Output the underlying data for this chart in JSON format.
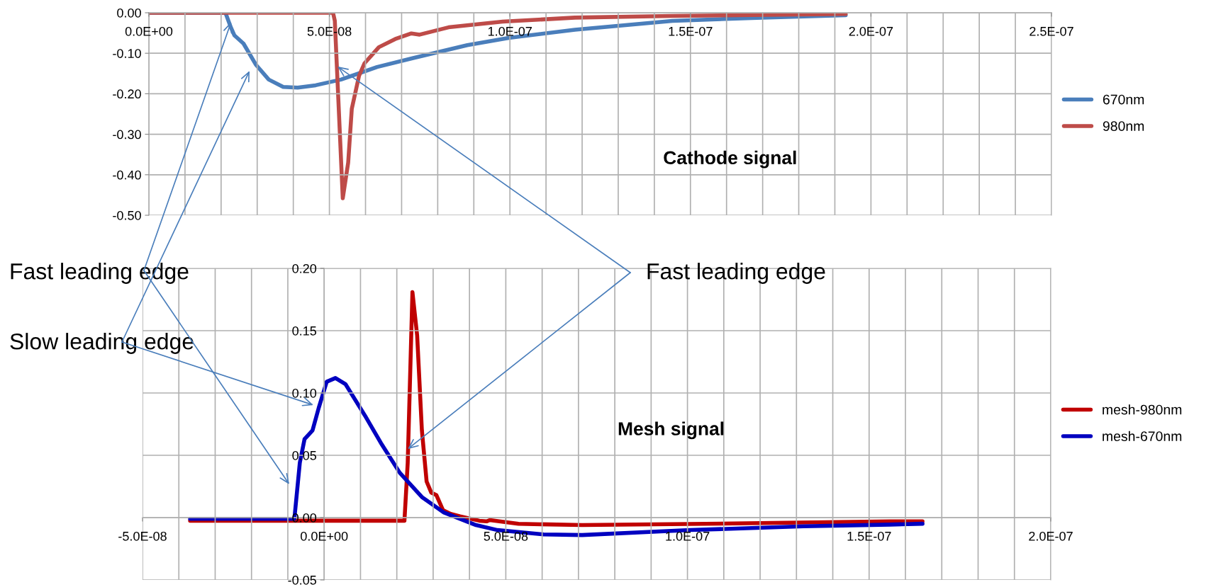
{
  "chart_data": [
    {
      "type": "line",
      "title": "Cathode signal",
      "series": [
        {
          "name": "670nm",
          "color": "#4a7ebb",
          "x": [
            0,
            2.12e-08,
            2.27e-08,
            2.37e-08,
            2.62e-08,
            2.97e-08,
            3.32e-08,
            3.72e-08,
            4.12e-08,
            4.62e-08,
            5.32e-08,
            6.32e-08,
            7.32e-08,
            8.82e-08,
            9.97e-08,
            1.18e-07,
            1.45e-07,
            1.7e-07,
            1.93e-07
          ],
          "values": [
            0,
            0,
            -0.036,
            -0.056,
            -0.076,
            -0.129,
            -0.165,
            -0.183,
            -0.185,
            -0.179,
            -0.165,
            -0.134,
            -0.112,
            -0.08,
            -0.062,
            -0.042,
            -0.02,
            -0.012,
            -0.006
          ]
        },
        {
          "name": "980nm",
          "color": "#be4b48",
          "x": [
            0,
            5.1e-08,
            5.15e-08,
            5.37e-08,
            5.52e-08,
            5.62e-08,
            5.82e-08,
            5.97e-08,
            6.37e-08,
            6.82e-08,
            7.27e-08,
            7.5e-08,
            8.3e-08,
            9.8e-08,
            1.18e-07,
            1.45e-07,
            1.93e-07
          ],
          "values": [
            0,
            0,
            -0.02,
            -0.458,
            -0.37,
            -0.237,
            -0.156,
            -0.125,
            -0.085,
            -0.065,
            -0.051,
            -0.054,
            -0.036,
            -0.022,
            -0.012,
            -0.008,
            -0.003
          ]
        }
      ],
      "xlim": [
        0,
        2.5e-07
      ],
      "xticks": [
        {
          "value": 0,
          "label": "0.0E+00"
        },
        {
          "value": 5e-08,
          "label": "5.0E-08"
        },
        {
          "value": 1e-07,
          "label": "1.0E-07"
        },
        {
          "value": 1.5e-07,
          "label": "1.5E-07"
        },
        {
          "value": 2e-07,
          "label": "2.0E-07"
        },
        {
          "value": 2.5e-07,
          "label": "2.5E-07"
        }
      ],
      "ylim": [
        -0.5,
        0
      ],
      "yticks": [
        {
          "value": -0.5,
          "label": "-0.50"
        },
        {
          "value": -0.4,
          "label": "-0.40"
        },
        {
          "value": -0.3,
          "label": "-0.30"
        },
        {
          "value": -0.2,
          "label": "-0.20"
        },
        {
          "value": -0.1,
          "label": "-0.10"
        },
        {
          "value": 0,
          "label": "0.00"
        }
      ],
      "grid": true,
      "legend": "right",
      "marker": "none",
      "line_style": "solid"
    },
    {
      "type": "line",
      "title": "Mesh signal",
      "series": [
        {
          "name": "mesh-980nm",
          "color": "#c00000",
          "x": [
            -3.69e-08,
            2.21e-08,
            2.3e-08,
            2.43e-08,
            2.56e-08,
            2.69e-08,
            2.82e-08,
            2.95e-08,
            3.09e-08,
            3.27e-08,
            3.48e-08,
            3.74e-08,
            4.27e-08,
            4.47e-08,
            4.56e-08,
            5.35e-08,
            7.1e-08,
            1.05e-07,
            1.557e-07,
            1.647e-07
          ],
          "values": [
            -0.0025,
            -0.0025,
            0.044,
            0.181,
            0.146,
            0.07,
            0.029,
            0.02,
            0.018,
            0.006,
            0.003,
            0.001,
            -0.0025,
            -0.003,
            -0.002,
            -0.005,
            -0.006,
            -0.005,
            -0.003,
            -0.003
          ]
        },
        {
          "name": "mesh-670nm",
          "color": "#0000c0",
          "x": [
            -3.69e-08,
            -8.2e-09,
            -6.7e-09,
            -5.4e-09,
            -3.2e-09,
            -1.5e-09,
            7e-10,
            3.1e-09,
            5.9e-09,
            1.12e-08,
            1.56e-08,
            2.08e-08,
            2.69e-08,
            3.3e-08,
            4.18e-08,
            4.77e-08,
            6.04e-08,
            7.1e-08,
            1.008e-07,
            1.32e-07,
            1.557e-07,
            1.647e-07
          ],
          "values": [
            -0.001,
            -0.001,
            0.044,
            0.063,
            0.07,
            0.088,
            0.109,
            0.112,
            0.107,
            0.082,
            0.06,
            0.036,
            0.0165,
            0.004,
            -0.006,
            -0.01,
            -0.0135,
            -0.014,
            -0.01,
            -0.007,
            -0.0056,
            -0.0049
          ]
        }
      ],
      "xlim": [
        -5e-08,
        2e-07
      ],
      "xticks": [
        {
          "value": -5e-08,
          "label": "-5.0E-08"
        },
        {
          "value": 0,
          "label": "0.0E+00"
        },
        {
          "value": 5e-08,
          "label": "5.0E-08"
        },
        {
          "value": 1e-07,
          "label": "1.0E-07"
        },
        {
          "value": 1.5e-07,
          "label": "1.5E-07"
        },
        {
          "value": 2e-07,
          "label": "2.0E-07"
        }
      ],
      "ylim": [
        -0.05,
        0.2
      ],
      "yticks": [
        {
          "value": -0.05,
          "label": "-0.05"
        },
        {
          "value": 0,
          "label": "0.00"
        },
        {
          "value": 0.05,
          "label": "0.05"
        },
        {
          "value": 0.1,
          "label": "0.10"
        },
        {
          "value": 0.15,
          "label": "0.15"
        },
        {
          "value": 0.2,
          "label": "0.20"
        }
      ],
      "grid": true,
      "legend": "right",
      "marker": "none",
      "line_style": "solid",
      "annotations": [
        "Fast leading edge",
        "Slow leading edge",
        {
          "text": "Fast leading edge",
          "x": 2.3e-08,
          "y": 0.055
        }
      ]
    }
  ]
}
